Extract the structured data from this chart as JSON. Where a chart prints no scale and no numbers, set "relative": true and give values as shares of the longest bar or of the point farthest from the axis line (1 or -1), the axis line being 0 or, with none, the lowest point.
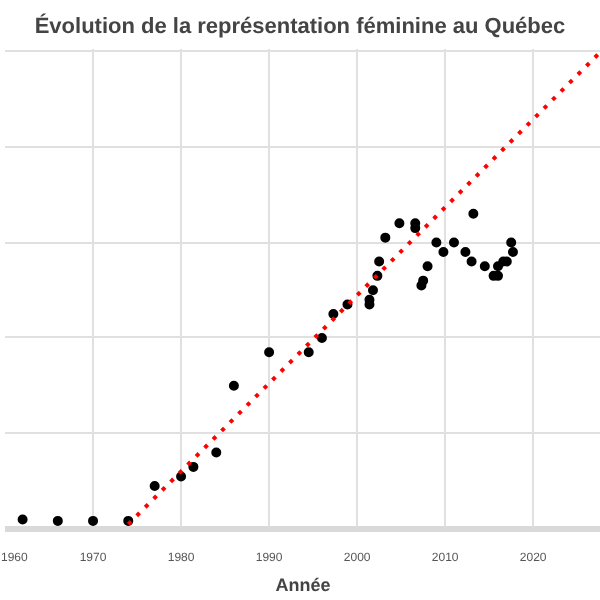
{
  "chart_data": {
    "type": "scatter",
    "title": "Évolution de la représentation féminine  au Québec",
    "xlabel": "Année",
    "relative": true,
    "grid": true,
    "marker": "circle",
    "xlim": [
      1960,
      2027.7
    ],
    "xticks": [
      1960,
      1970,
      1980,
      1990,
      2000,
      2010,
      2020
    ],
    "series": [
      {
        "color": "#000000",
        "x": [
          1962,
          1966,
          1970,
          1974,
          1977,
          1980,
          1981.4,
          1984,
          1986,
          1990,
          1994.5,
          1996,
          1997.3,
          1998.9,
          2001.4,
          2001.4,
          2001.8,
          2002.3,
          2002.5,
          2003.2,
          2004.8,
          2006.6,
          2006.6,
          2007.3,
          2007.5,
          2008,
          2009,
          2009.8,
          2011,
          2012.3,
          2013,
          2013.2,
          2014.5,
          2015.5,
          2016,
          2016,
          2016.6,
          2017,
          2017.5,
          2017.7
        ],
        "values": [
          0.02,
          0.017,
          0.017,
          0.017,
          0.09,
          0.11,
          0.13,
          0.16,
          0.3,
          0.37,
          0.37,
          0.4,
          0.45,
          0.47,
          0.48,
          0.47,
          0.5,
          0.53,
          0.56,
          0.61,
          0.64,
          0.64,
          0.63,
          0.51,
          0.52,
          0.55,
          0.6,
          0.58,
          0.6,
          0.58,
          0.56,
          0.66,
          0.55,
          0.53,
          0.53,
          0.55,
          0.56,
          0.56,
          0.6,
          0.58
        ]
      },
      {
        "type": "line",
        "color": "#ff0000",
        "line_style": "dotted",
        "marker": "none",
        "x": [
          1974,
          2027.7
        ],
        "values": [
          0.01,
          1
        ]
      }
    ]
  }
}
